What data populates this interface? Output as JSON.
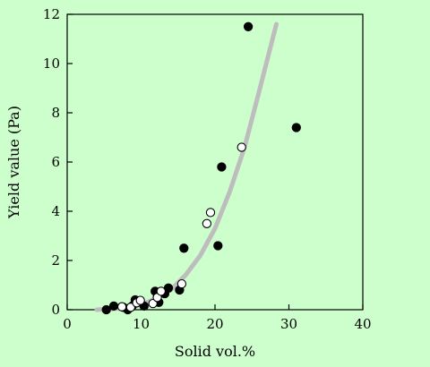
{
  "chart_data": {
    "type": "scatter",
    "xlabel": "Solid vol.%",
    "ylabel": "Yield value (Pa)",
    "xlim": [
      0,
      40
    ],
    "ylim": [
      0,
      12
    ],
    "x_ticks": [
      "0",
      "10",
      "20",
      "30",
      "40"
    ],
    "y_ticks": [
      "0",
      "2",
      "4",
      "6",
      "8",
      "10",
      "12"
    ],
    "grid": false,
    "colors": {
      "background": "#ccffcc",
      "filled": "#000000",
      "open": "#ffffff",
      "curve": "#bdbdbd"
    },
    "series": [
      {
        "marker": "filled-circle",
        "points": [
          [
            5.3,
            0.0
          ],
          [
            6.3,
            0.15
          ],
          [
            7.6,
            0.1
          ],
          [
            8.2,
            0.0
          ],
          [
            8.8,
            0.15
          ],
          [
            9.2,
            0.4
          ],
          [
            10.4,
            0.15
          ],
          [
            11.9,
            0.75
          ],
          [
            12.4,
            0.3
          ],
          [
            13.2,
            0.65
          ],
          [
            13.7,
            0.88
          ],
          [
            15.2,
            0.8
          ],
          [
            15.8,
            2.5
          ],
          [
            20.4,
            2.6
          ],
          [
            20.9,
            5.8
          ],
          [
            24.5,
            11.5
          ],
          [
            31.0,
            7.4
          ]
        ]
      },
      {
        "marker": "open-circle",
        "points": [
          [
            7.4,
            0.12
          ],
          [
            8.6,
            0.1
          ],
          [
            9.4,
            0.28
          ],
          [
            9.9,
            0.38
          ],
          [
            11.6,
            0.25
          ],
          [
            12.2,
            0.5
          ],
          [
            12.7,
            0.75
          ],
          [
            15.5,
            1.05
          ],
          [
            18.9,
            3.5
          ],
          [
            19.4,
            3.95
          ],
          [
            23.6,
            6.6
          ]
        ]
      },
      {
        "marker": "fit-line",
        "points": [
          [
            4.0,
            0.0
          ],
          [
            7.0,
            0.05
          ],
          [
            10.0,
            0.2
          ],
          [
            12.0,
            0.45
          ],
          [
            14.0,
            0.8
          ],
          [
            16.0,
            1.4
          ],
          [
            18.0,
            2.2
          ],
          [
            20.0,
            3.3
          ],
          [
            22.0,
            4.8
          ],
          [
            24.0,
            6.6
          ],
          [
            26.0,
            8.9
          ],
          [
            28.3,
            11.6
          ]
        ]
      }
    ]
  }
}
